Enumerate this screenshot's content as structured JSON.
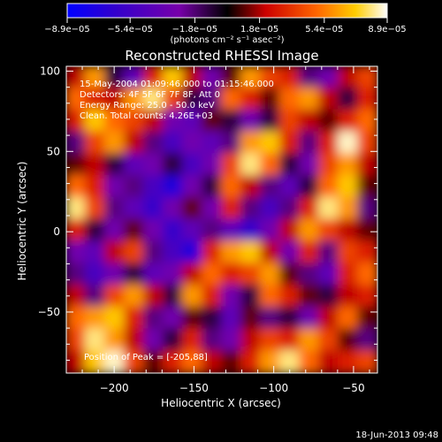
{
  "chart_data": {
    "type": "heatmap",
    "title": "Reconstructed RHESSI Image",
    "xlabel": "Heliocentric X (arcsec)",
    "ylabel": "Heliocentric Y (arcsec)",
    "xlim": [
      -230,
      -35
    ],
    "ylim": [
      -88,
      103
    ],
    "x_ticks": [
      -200,
      -150,
      -100,
      -50
    ],
    "x_tick_labels": [
      "−200",
      "−150",
      "−100",
      "−50"
    ],
    "y_ticks": [
      -50,
      0,
      50,
      100
    ],
    "y_tick_labels": [
      "−50",
      "0",
      "50",
      "100"
    ],
    "colorbar": {
      "range": [
        -8.9e-05,
        8.9e-05
      ],
      "tick_values": [
        -8.9e-05,
        -5.4e-05,
        -1.8e-05,
        1.8e-05,
        5.4e-05,
        8.9e-05
      ],
      "tick_labels": [
        "−8.9e−05",
        "−5.4e−05",
        "−1.8e−05",
        "1.8e−05",
        "5.4e−05",
        "8.9e−05"
      ],
      "unit_label": "(photons cm⁻² s⁻¹ asec⁻²)",
      "colors": [
        "#0000ff",
        "#3300cc",
        "#7700aa",
        "#000000",
        "#cc0000",
        "#ff6600",
        "#ffcc00",
        "#ffffff"
      ]
    },
    "annotations": [
      "15-May-2004 01:09:46.000 to 01:15:46.000",
      "Detectors: 4F 5F 6F 7F 8F, Att 0",
      "Energy Range: 25.0 - 50.0 keV",
      "Clean. Total counts: 4.26E+03"
    ],
    "position_note": "Position of Peak = [-205,88]",
    "timestamp": "18-Jun-2013 09:48",
    "values": [
      [
        2e-05,
        6e-05,
        -1e-05,
        -4e-05,
        3e-05,
        7e-05,
        2e-05,
        -3e-05,
        1e-05,
        6e-05,
        4e-05,
        3e-05,
        -2e-05,
        -3e-05,
        2e-05,
        4e-05
      ],
      [
        5e-05,
        3e-05,
        2e-05,
        6e-05,
        8e-05,
        4e-05,
        -1e-05,
        -2e-05,
        5e-05,
        3e-05,
        1e-05,
        5e-05,
        6e-05,
        2e-05,
        -1e-05,
        3e-05
      ],
      [
        3e-05,
        7e-05,
        5e-05,
        4e-05,
        2e-05,
        -3e-05,
        -4e-05,
        1e-05,
        -1e-05,
        -3e-05,
        -1e-05,
        4e-05,
        2e-05,
        1e-05,
        3e-05,
        5e-05
      ],
      [
        -2e-05,
        4e-05,
        6e-05,
        2e-05,
        -2e-05,
        -5e-05,
        -3e-05,
        -4e-05,
        -2e-05,
        6e-05,
        7e-05,
        3e-05,
        -2e-05,
        3e-05,
        8.5e-05,
        4e-05
      ],
      [
        1e-05,
        2e-05,
        -1e-05,
        -4e-05,
        -3e-05,
        -1e-05,
        -5e-05,
        -3e-05,
        4e-05,
        8e-05,
        5e-05,
        -1e-05,
        -3e-05,
        4e-05,
        6e-05,
        2e-05
      ],
      [
        5e-05,
        3e-05,
        -3e-05,
        -2e-05,
        -5e-05,
        -7e-05,
        -3e-05,
        -1e-05,
        5e-05,
        2e-05,
        -2e-05,
        -4e-05,
        -1e-05,
        5e-05,
        7e-05,
        1e-05
      ],
      [
        8e-05,
        4e-05,
        -2e-05,
        -4e-05,
        -6e-05,
        -3e-05,
        1e-05,
        -3e-05,
        3e-05,
        -2e-05,
        -5e-05,
        -2e-05,
        3e-05,
        8e-05,
        6e-05,
        -2e-05
      ],
      [
        3e-05,
        -1e-05,
        -3e-05,
        1e-05,
        -3e-05,
        -6e-05,
        -4e-05,
        -2e-05,
        -4e-05,
        -6e-05,
        -3e-05,
        2e-05,
        6e-05,
        4e-05,
        2e-05,
        1e-05
      ],
      [
        -3e-05,
        -4e-05,
        2e-05,
        4e-05,
        -2e-05,
        -5e-05,
        -7e-05,
        3e-05,
        6e-05,
        7e-05,
        2e-05,
        -3e-05,
        3e-05,
        -2e-05,
        4e-05,
        3e-05
      ],
      [
        -2e-05,
        -5e-05,
        -3e-05,
        -1e-05,
        -4e-05,
        -3e-05,
        2e-05,
        5e-05,
        3e-05,
        4e-05,
        6e-05,
        1e-05,
        -2e-05,
        -4e-05,
        3e-05,
        5e-05
      ],
      [
        2e-05,
        -2e-05,
        4e-05,
        6e-05,
        2e-05,
        -1e-05,
        6e-05,
        3e-05,
        -3e-05,
        -1e-05,
        5e-05,
        3e-05,
        1e-05,
        -1e-05,
        2e-05,
        3e-05
      ],
      [
        5e-05,
        6e-05,
        7e-05,
        3e-05,
        -2e-05,
        -3e-05,
        1e-05,
        -1e-05,
        -4e-05,
        1e-05,
        -2e-05,
        -1e-05,
        -3e-05,
        2e-05,
        5e-05,
        1e-05
      ],
      [
        4e-05,
        8e-05,
        6e-05,
        2e-05,
        -3e-05,
        -1e-05,
        3e-05,
        -2e-05,
        -3e-05,
        2e-05,
        4e-05,
        3e-05,
        6e-05,
        4e-05,
        1e-05,
        -2e-05
      ],
      [
        2e-05,
        7e-05,
        8.5e-05,
        4e-05,
        1e-05,
        3e-05,
        5e-05,
        2e-05,
        1e-05,
        3e-05,
        6e-05,
        8e-05,
        5e-05,
        2e-05,
        3e-05,
        4e-05
      ]
    ]
  },
  "status_bar": {
    "timestamp": "18-Jun-2013 09:48"
  }
}
